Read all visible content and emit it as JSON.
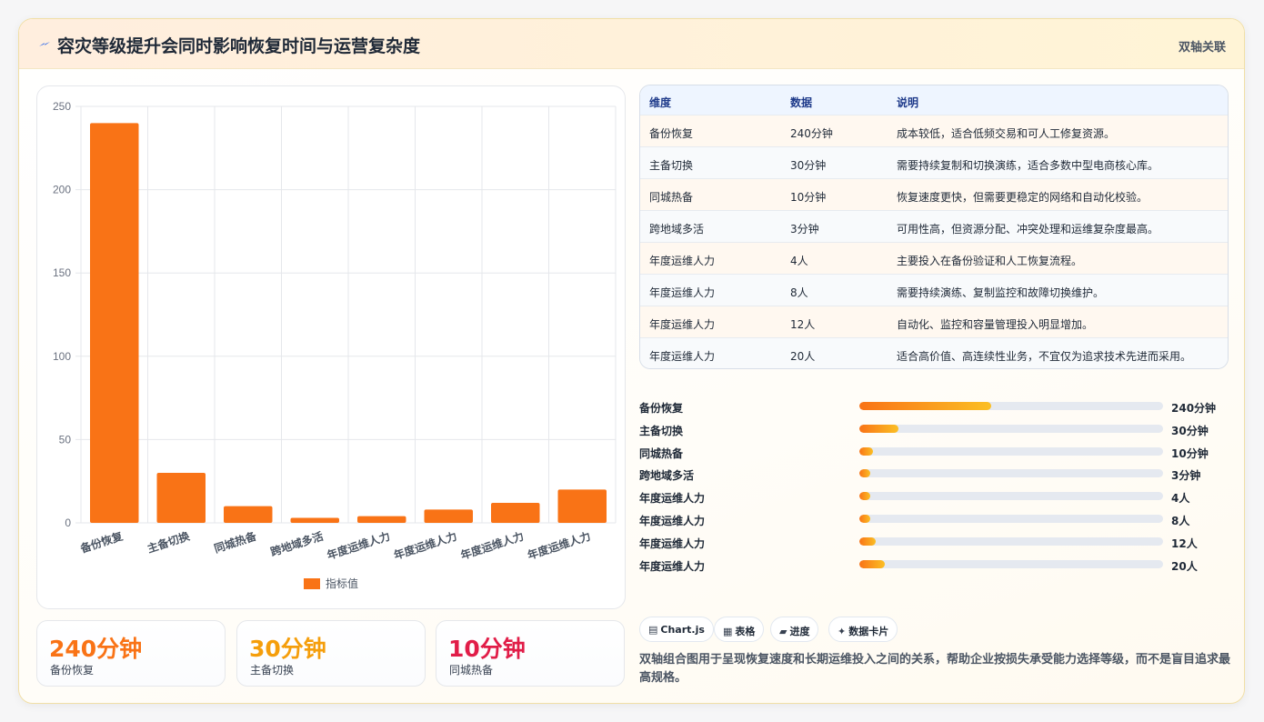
{
  "header": {
    "title": "容灾等级提升会同时影响恢复时间与运营复杂度",
    "tag": "双轴关联",
    "icon": "bolt-icon"
  },
  "chart_data": {
    "type": "bar",
    "categories": [
      "备份恢复",
      "主备切换",
      "同城热备",
      "跨地域多活",
      "年度运维人力",
      "年度运维人力",
      "年度运维人力",
      "年度运维人力"
    ],
    "series": [
      {
        "name": "指标值",
        "values": [
          240,
          30,
          10,
          3,
          4,
          8,
          12,
          20
        ],
        "color": "#f97316"
      }
    ],
    "ylim": [
      0,
      250
    ],
    "yticks": [
      0,
      50,
      100,
      150,
      200,
      250
    ],
    "grid": true,
    "legend": "bottom"
  },
  "kpis": [
    {
      "value": "240分钟",
      "label": "备份恢复",
      "color": "#f97316"
    },
    {
      "value": "30分钟",
      "label": "主备切换",
      "color": "#f59e0b"
    },
    {
      "value": "10分钟",
      "label": "同城热备",
      "color": "#e11d48"
    }
  ],
  "table": {
    "headers": [
      "维度",
      "数据",
      "说明"
    ],
    "rows": [
      [
        "备份恢复",
        "240分钟",
        "成本较低，适合低频交易和可人工修复资源。"
      ],
      [
        "主备切换",
        "30分钟",
        "需要持续复制和切换演练，适合多数中型电商核心库。"
      ],
      [
        "同城热备",
        "10分钟",
        "恢复速度更快，但需要更稳定的网络和自动化校验。"
      ],
      [
        "跨地域多活",
        "3分钟",
        "可用性高，但资源分配、冲突处理和运维复杂度最高。"
      ],
      [
        "年度运维人力",
        "4人",
        "主要投入在备份验证和人工恢复流程。"
      ],
      [
        "年度运维人力",
        "8人",
        "需要持续演练、复制监控和故障切换维护。"
      ],
      [
        "年度运维人力",
        "12人",
        "自动化、监控和容量管理投入明显增加。"
      ],
      [
        "年度运维人力",
        "20人",
        "适合高价值、高连续性业务，不宜仅为追求技术先进而采用。"
      ]
    ]
  },
  "progress": [
    {
      "label": "备份恢复",
      "value": "240分钟",
      "fraction": 0.435
    },
    {
      "label": "主备切换",
      "value": "30分钟",
      "fraction": 0.13
    },
    {
      "label": "同城热备",
      "value": "10分钟",
      "fraction": 0.045
    },
    {
      "label": "跨地域多活",
      "value": "3分钟",
      "fraction": 0.035
    },
    {
      "label": "年度运维人力",
      "value": "4人",
      "fraction": 0.035
    },
    {
      "label": "年度运维人力",
      "value": "8人",
      "fraction": 0.035
    },
    {
      "label": "年度运维人力",
      "value": "12人",
      "fraction": 0.055
    },
    {
      "label": "年度运维人力",
      "value": "20人",
      "fraction": 0.085
    }
  ],
  "chips": [
    {
      "icon": "chart-icon",
      "glyph": "▤",
      "label": "Chart.js"
    },
    {
      "icon": "table-icon",
      "glyph": "▦",
      "label": "表格"
    },
    {
      "icon": "progress-icon",
      "glyph": "▰",
      "label": "进度"
    },
    {
      "icon": "sparkle-icon",
      "glyph": "✦",
      "label": "数据卡片"
    }
  ],
  "note": "双轴组合图用于呈现恢复速度和长期运维投入之间的关系，帮助企业按损失承受能力选择等级，而不是盲目追求最高规格。"
}
